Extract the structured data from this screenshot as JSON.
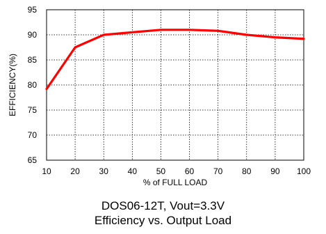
{
  "chart_data": {
    "type": "line",
    "title": "",
    "xlabel": "% of FULL LOAD",
    "ylabel": "EFFICIENCY(%)",
    "xlim": [
      10,
      100
    ],
    "ylim": [
      65,
      95
    ],
    "x_ticks": [
      10,
      20,
      30,
      40,
      50,
      60,
      70,
      80,
      90,
      100
    ],
    "y_ticks": [
      65,
      70,
      75,
      80,
      85,
      90,
      95
    ],
    "grid": true,
    "grid_style": "dotted",
    "legend": "none",
    "series": [
      {
        "color": "#ff0000",
        "x": [
          10,
          20,
          30,
          40,
          50,
          60,
          70,
          80,
          90,
          100
        ],
        "values": [
          79.2,
          87.5,
          90.0,
          90.5,
          91.0,
          91.0,
          90.8,
          90.0,
          89.5,
          89.2
        ]
      }
    ]
  },
  "caption": {
    "line1": "DOS06-12T, Vout=3.3V",
    "line2": "Efficiency vs. Output Load"
  }
}
